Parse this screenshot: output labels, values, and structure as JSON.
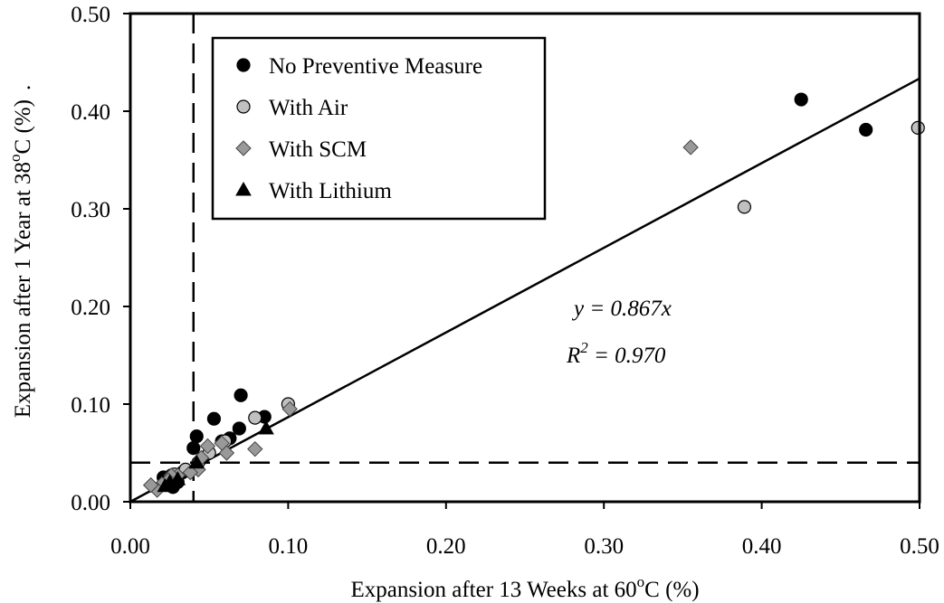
{
  "chart_data": {
    "type": "scatter",
    "xlabel": {
      "prefix": "Expansion after 13 Weeks at 60",
      "sup": "o",
      "suffix": "C (%)"
    },
    "ylabel": {
      "prefix": "Expansion after 1 Year at 38",
      "sup": "o",
      "suffix": "C (%)",
      "trailing": "."
    },
    "xlim": [
      0,
      0.5
    ],
    "ylim": [
      0,
      0.5
    ],
    "x_ticks": [
      "0.00",
      "0.10",
      "0.20",
      "0.30",
      "0.40",
      "0.50"
    ],
    "y_ticks": [
      "0.00",
      "0.10",
      "0.20",
      "0.30",
      "0.40",
      "0.50"
    ],
    "x_tick_values": [
      0,
      0.1,
      0.2,
      0.3,
      0.4,
      0.5
    ],
    "y_tick_values": [
      0,
      0.1,
      0.2,
      0.3,
      0.4,
      0.5
    ],
    "grid": false,
    "legend_position": "top-left",
    "thresholds": {
      "x": 0.04,
      "y": 0.04
    },
    "fit": {
      "slope": 0.867,
      "x_range": [
        0,
        0.5
      ],
      "equation": "y = 0.867x",
      "r2_prefix": "R",
      "r2_sup": "2",
      "r2_suffix": " = 0.970"
    },
    "series": [
      {
        "name": "No Preventive Measure",
        "marker": "circle",
        "fill": "#000000",
        "points": [
          [
            0.425,
            0.412
          ],
          [
            0.466,
            0.381
          ],
          [
            0.07,
            0.109
          ],
          [
            0.085,
            0.087
          ],
          [
            0.053,
            0.085
          ],
          [
            0.069,
            0.075
          ],
          [
            0.063,
            0.065
          ],
          [
            0.058,
            0.062
          ],
          [
            0.042,
            0.067
          ],
          [
            0.04,
            0.055
          ],
          [
            0.046,
            0.045
          ],
          [
            0.033,
            0.03
          ],
          [
            0.026,
            0.027
          ],
          [
            0.021,
            0.025
          ],
          [
            0.03,
            0.02
          ],
          [
            0.027,
            0.015
          ]
        ]
      },
      {
        "name": "With Air",
        "marker": "circle",
        "fill": "#c0c0c0",
        "points": [
          [
            0.499,
            0.383
          ],
          [
            0.389,
            0.302
          ],
          [
            0.1,
            0.1
          ],
          [
            0.079,
            0.086
          ],
          [
            0.06,
            0.062
          ],
          [
            0.05,
            0.05
          ],
          [
            0.043,
            0.04
          ],
          [
            0.035,
            0.033
          ],
          [
            0.028,
            0.028
          ],
          [
            0.022,
            0.018
          ]
        ]
      },
      {
        "name": "With SCM",
        "marker": "diamond",
        "fill": "#999999",
        "points": [
          [
            0.355,
            0.363
          ],
          [
            0.101,
            0.095
          ],
          [
            0.079,
            0.054
          ],
          [
            0.061,
            0.05
          ],
          [
            0.058,
            0.06
          ],
          [
            0.049,
            0.057
          ],
          [
            0.045,
            0.045
          ],
          [
            0.043,
            0.033
          ],
          [
            0.038,
            0.03
          ],
          [
            0.03,
            0.027
          ],
          [
            0.026,
            0.027
          ],
          [
            0.024,
            0.022
          ],
          [
            0.02,
            0.018
          ],
          [
            0.017,
            0.012
          ],
          [
            0.013,
            0.017
          ]
        ]
      },
      {
        "name": "With Lithium",
        "marker": "triangle",
        "fill": "#000000",
        "points": [
          [
            0.086,
            0.075
          ],
          [
            0.042,
            0.04
          ],
          [
            0.03,
            0.023
          ],
          [
            0.025,
            0.02
          ],
          [
            0.022,
            0.016
          ]
        ]
      }
    ]
  }
}
